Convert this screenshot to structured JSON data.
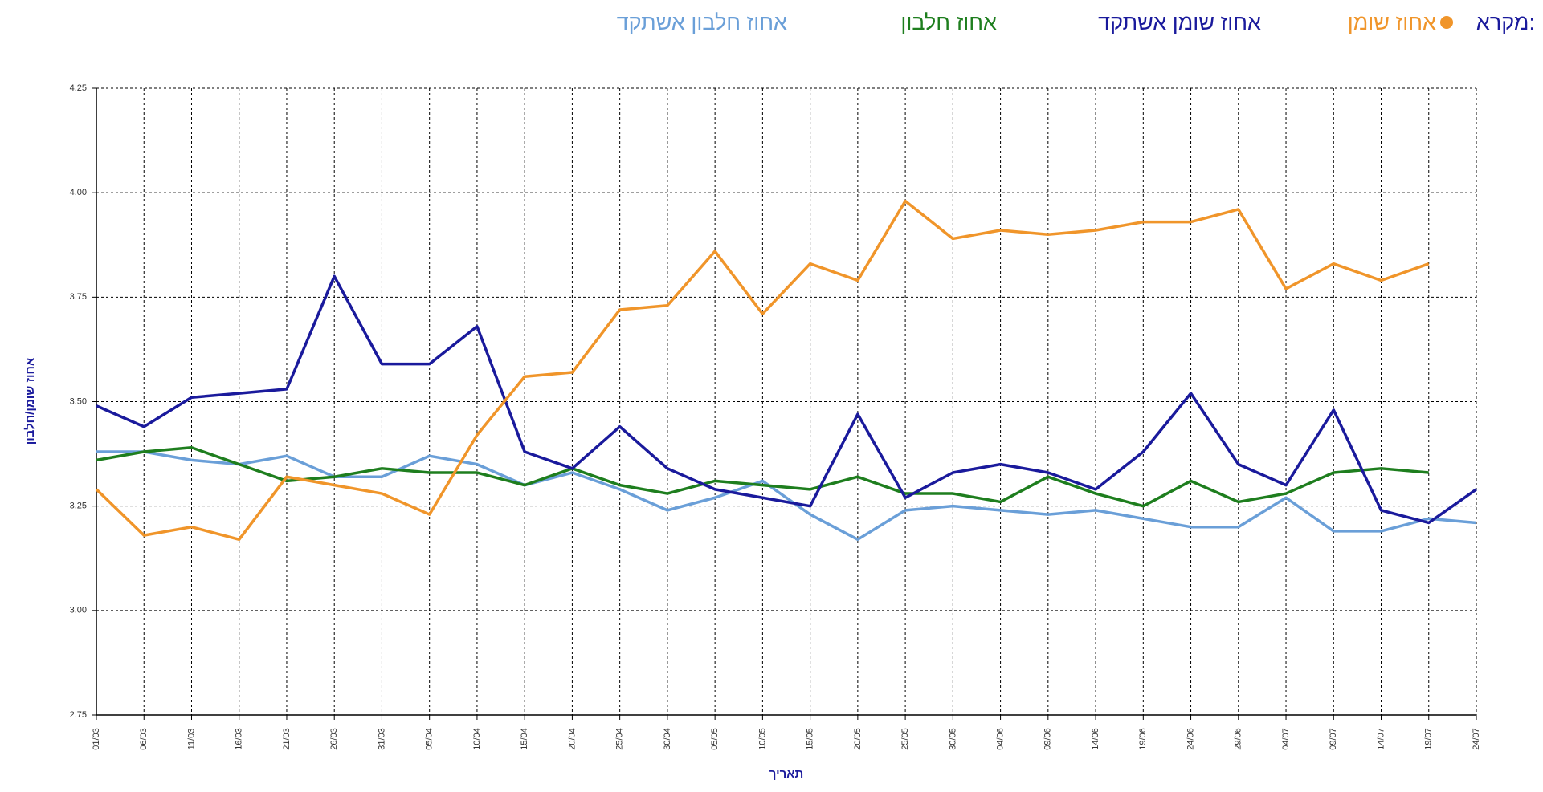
{
  "chart_data": {
    "type": "line",
    "legend_title": "מקרא:",
    "y_label": "אחוז שומן/חלבון",
    "x_label": "תאריך",
    "categories": [
      "01/03",
      "06/03",
      "11/03",
      "16/03",
      "21/03",
      "26/03",
      "31/03",
      "05/04",
      "10/04",
      "15/04",
      "20/04",
      "25/04",
      "30/04",
      "05/05",
      "10/05",
      "15/05",
      "20/05",
      "25/05",
      "30/05",
      "04/06",
      "09/06",
      "14/06",
      "19/06",
      "24/06",
      "29/06",
      "04/07",
      "09/07",
      "14/07",
      "19/07",
      "24/07"
    ],
    "series": [
      {
        "name": "אחוז שומן",
        "color": "#f0952a",
        "values": [
          3.29,
          3.18,
          3.2,
          3.17,
          3.32,
          3.3,
          3.28,
          3.23,
          3.42,
          3.56,
          3.57,
          3.72,
          3.73,
          3.86,
          3.71,
          3.83,
          3.79,
          3.98,
          3.89,
          3.91,
          3.9,
          3.91,
          3.93,
          3.93,
          3.96,
          3.77,
          3.83,
          3.79,
          3.83,
          null
        ]
      },
      {
        "name": "אחוז שומן אשתקד",
        "color": "#1a1a9c",
        "values": [
          3.49,
          3.44,
          3.51,
          3.52,
          3.53,
          3.8,
          3.59,
          3.59,
          3.68,
          3.38,
          3.34,
          3.44,
          3.34,
          3.29,
          3.27,
          3.25,
          3.47,
          3.27,
          3.33,
          3.35,
          3.33,
          3.29,
          3.38,
          3.52,
          3.35,
          3.3,
          3.48,
          3.24,
          3.21,
          3.29
        ]
      },
      {
        "name": "אחוז חלבון",
        "color": "#1e7e1e",
        "values": [
          3.36,
          3.38,
          3.39,
          3.35,
          3.31,
          3.32,
          3.34,
          3.33,
          3.33,
          3.3,
          3.34,
          3.3,
          3.28,
          3.31,
          3.3,
          3.29,
          3.32,
          3.28,
          3.28,
          3.26,
          3.32,
          3.28,
          3.25,
          3.31,
          3.26,
          3.28,
          3.33,
          3.34,
          3.33,
          null
        ]
      },
      {
        "name": "אחוז חלבון אשתקד",
        "color": "#6a9fd8",
        "values": [
          3.38,
          3.38,
          3.36,
          3.35,
          3.37,
          3.32,
          3.32,
          3.37,
          3.35,
          3.3,
          3.33,
          3.29,
          3.24,
          3.27,
          3.31,
          3.23,
          3.17,
          3.24,
          3.25,
          3.24,
          3.23,
          3.24,
          3.22,
          3.2,
          3.2,
          3.27,
          3.19,
          3.19,
          3.22,
          3.21
        ]
      }
    ],
    "ylim": [
      2.75,
      4.25
    ],
    "yticks": [
      2.75,
      {
        "value": 3,
        "label": "3.00"
      },
      3.25,
      {
        "value": 3.5,
        "label": "3.50"
      },
      3.75,
      {
        "value": 4,
        "label": "4.00"
      },
      4.25
    ],
    "grid": true
  }
}
